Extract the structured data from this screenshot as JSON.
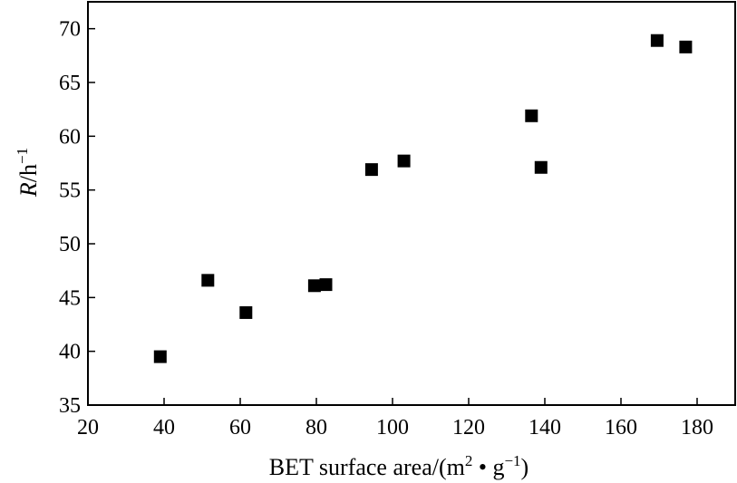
{
  "chart_data": {
    "type": "scatter",
    "title": "",
    "xlabel": {
      "text": "BET surface area/(m",
      "sup1": "2",
      "mid": " • g",
      "sup2": "−1",
      "end": ")"
    },
    "ylabel": {
      "italic": "R",
      "text": "/h",
      "sup": "−1"
    },
    "xlim": [
      20,
      190
    ],
    "ylim": [
      35,
      72.5
    ],
    "xticks": [
      20,
      40,
      60,
      80,
      100,
      120,
      140,
      160,
      180
    ],
    "yticks": [
      35,
      40,
      45,
      50,
      55,
      60,
      65,
      70
    ],
    "grid": false,
    "legend": "none",
    "marker": "square",
    "color": "#000000",
    "points": [
      {
        "x": 39,
        "y": 39.5
      },
      {
        "x": 51.5,
        "y": 46.6
      },
      {
        "x": 61.5,
        "y": 43.6
      },
      {
        "x": 79.5,
        "y": 46.1
      },
      {
        "x": 82.5,
        "y": 46.2
      },
      {
        "x": 94.5,
        "y": 56.9
      },
      {
        "x": 103,
        "y": 57.7
      },
      {
        "x": 136.5,
        "y": 61.9
      },
      {
        "x": 139,
        "y": 57.1
      },
      {
        "x": 169.5,
        "y": 68.9
      },
      {
        "x": 177,
        "y": 68.3
      }
    ]
  }
}
